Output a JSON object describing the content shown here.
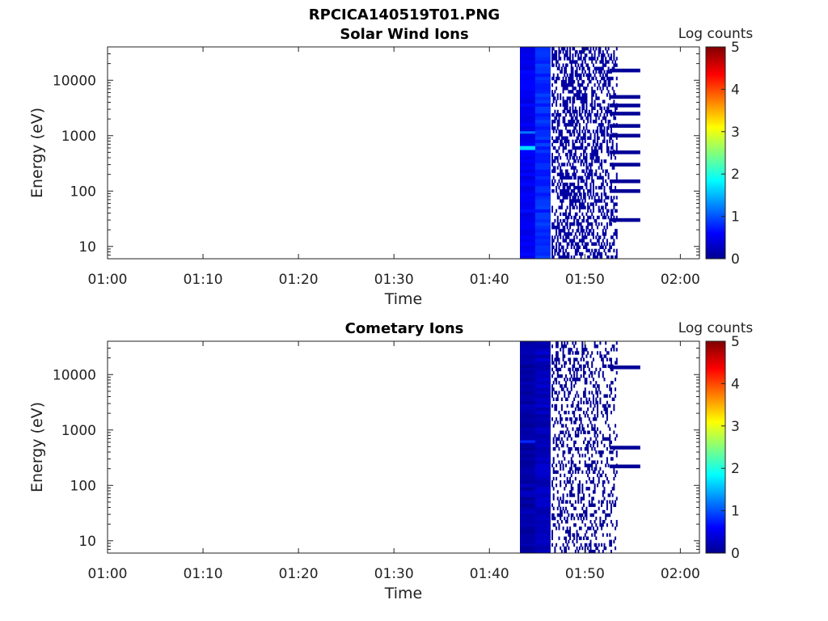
{
  "figure": {
    "title": "RPCICA140519T01.PNG"
  },
  "colors": {
    "colormap": [
      "#00008f",
      "#0000ff",
      "#00ffff",
      "#ffff00",
      "#ff0000",
      "#800000"
    ]
  },
  "chart_data": [
    {
      "type": "heatmap",
      "title": "Solar Wind Ions",
      "xlabel": "Time",
      "ylabel": "Energy (eV)",
      "x_ticks": [
        "01:00",
        "01:10",
        "01:20",
        "01:30",
        "01:40",
        "01:50",
        "02:00"
      ],
      "xlim": [
        "01:00",
        "02:02"
      ],
      "y_scale": "log",
      "y_ticks": [
        "10",
        "100",
        "1000",
        "10000"
      ],
      "ylim": [
        6,
        40000
      ],
      "colorbar_label": "Log counts",
      "colorbar_ticks": [
        "0",
        "1",
        "2",
        "3",
        "4",
        "5"
      ],
      "clim": [
        0,
        5
      ],
      "data_time_range": [
        "01:43",
        "01:56"
      ],
      "columns": [
        {
          "t": [
            "01:43.2",
            "01:44.8"
          ],
          "e": [
            6,
            40000
          ],
          "v": 0.55
        },
        {
          "t": [
            "01:44.8",
            "01:46.4"
          ],
          "e": [
            6,
            40000
          ],
          "v": 0.8
        },
        {
          "t": [
            "01:46.5",
            "01:53.4"
          ],
          "e": [
            6,
            40000
          ],
          "v": 0.1,
          "sparse": true,
          "density": 0.55
        },
        {
          "t": [
            "01:52.6",
            "01:55.8"
          ],
          "e": [
            6,
            40000
          ],
          "v": 0.05,
          "sparse": true,
          "bands": [
            15000,
            5000,
            3500,
            2500,
            1500,
            1000,
            500,
            300,
            150,
            100,
            30
          ]
        }
      ],
      "highlights": [
        {
          "t": [
            "01:43.2",
            "01:44.8"
          ],
          "e": [
            550,
            650
          ],
          "v": 1.7
        },
        {
          "t": [
            "01:43.2",
            "01:44.8"
          ],
          "e": [
            1100,
            1200
          ],
          "v": 1.2
        }
      ]
    },
    {
      "type": "heatmap",
      "title": "Cometary Ions",
      "xlabel": "Time",
      "ylabel": "Energy (eV)",
      "x_ticks": [
        "01:00",
        "01:10",
        "01:20",
        "01:30",
        "01:40",
        "01:50",
        "02:00"
      ],
      "xlim": [
        "01:00",
        "02:02"
      ],
      "y_scale": "log",
      "y_ticks": [
        "10",
        "100",
        "1000",
        "10000"
      ],
      "ylim": [
        6,
        40000
      ],
      "colorbar_label": "Log counts",
      "colorbar_ticks": [
        "0",
        "1",
        "2",
        "3",
        "4",
        "5"
      ],
      "clim": [
        0,
        5
      ],
      "data_time_range": [
        "01:43",
        "01:56"
      ],
      "columns": [
        {
          "t": [
            "01:43.2",
            "01:44.8"
          ],
          "e": [
            6,
            40000
          ],
          "v": 0.15
        },
        {
          "t": [
            "01:44.8",
            "01:46.4"
          ],
          "e": [
            6,
            40000
          ],
          "v": 0.25
        },
        {
          "t": [
            "01:46.5",
            "01:53.4"
          ],
          "e": [
            6,
            40000
          ],
          "v": 0.05,
          "sparse": true,
          "density": 0.35
        },
        {
          "t": [
            "01:52.6",
            "01:55.8"
          ],
          "e": [
            6,
            40000
          ],
          "v": 0.05,
          "sparse": true,
          "bands": [
            13500,
            480,
            220
          ]
        }
      ],
      "highlights": [
        {
          "t": [
            "01:43.2",
            "01:44.8"
          ],
          "e": [
            600,
            650
          ],
          "v": 0.8
        }
      ]
    }
  ]
}
